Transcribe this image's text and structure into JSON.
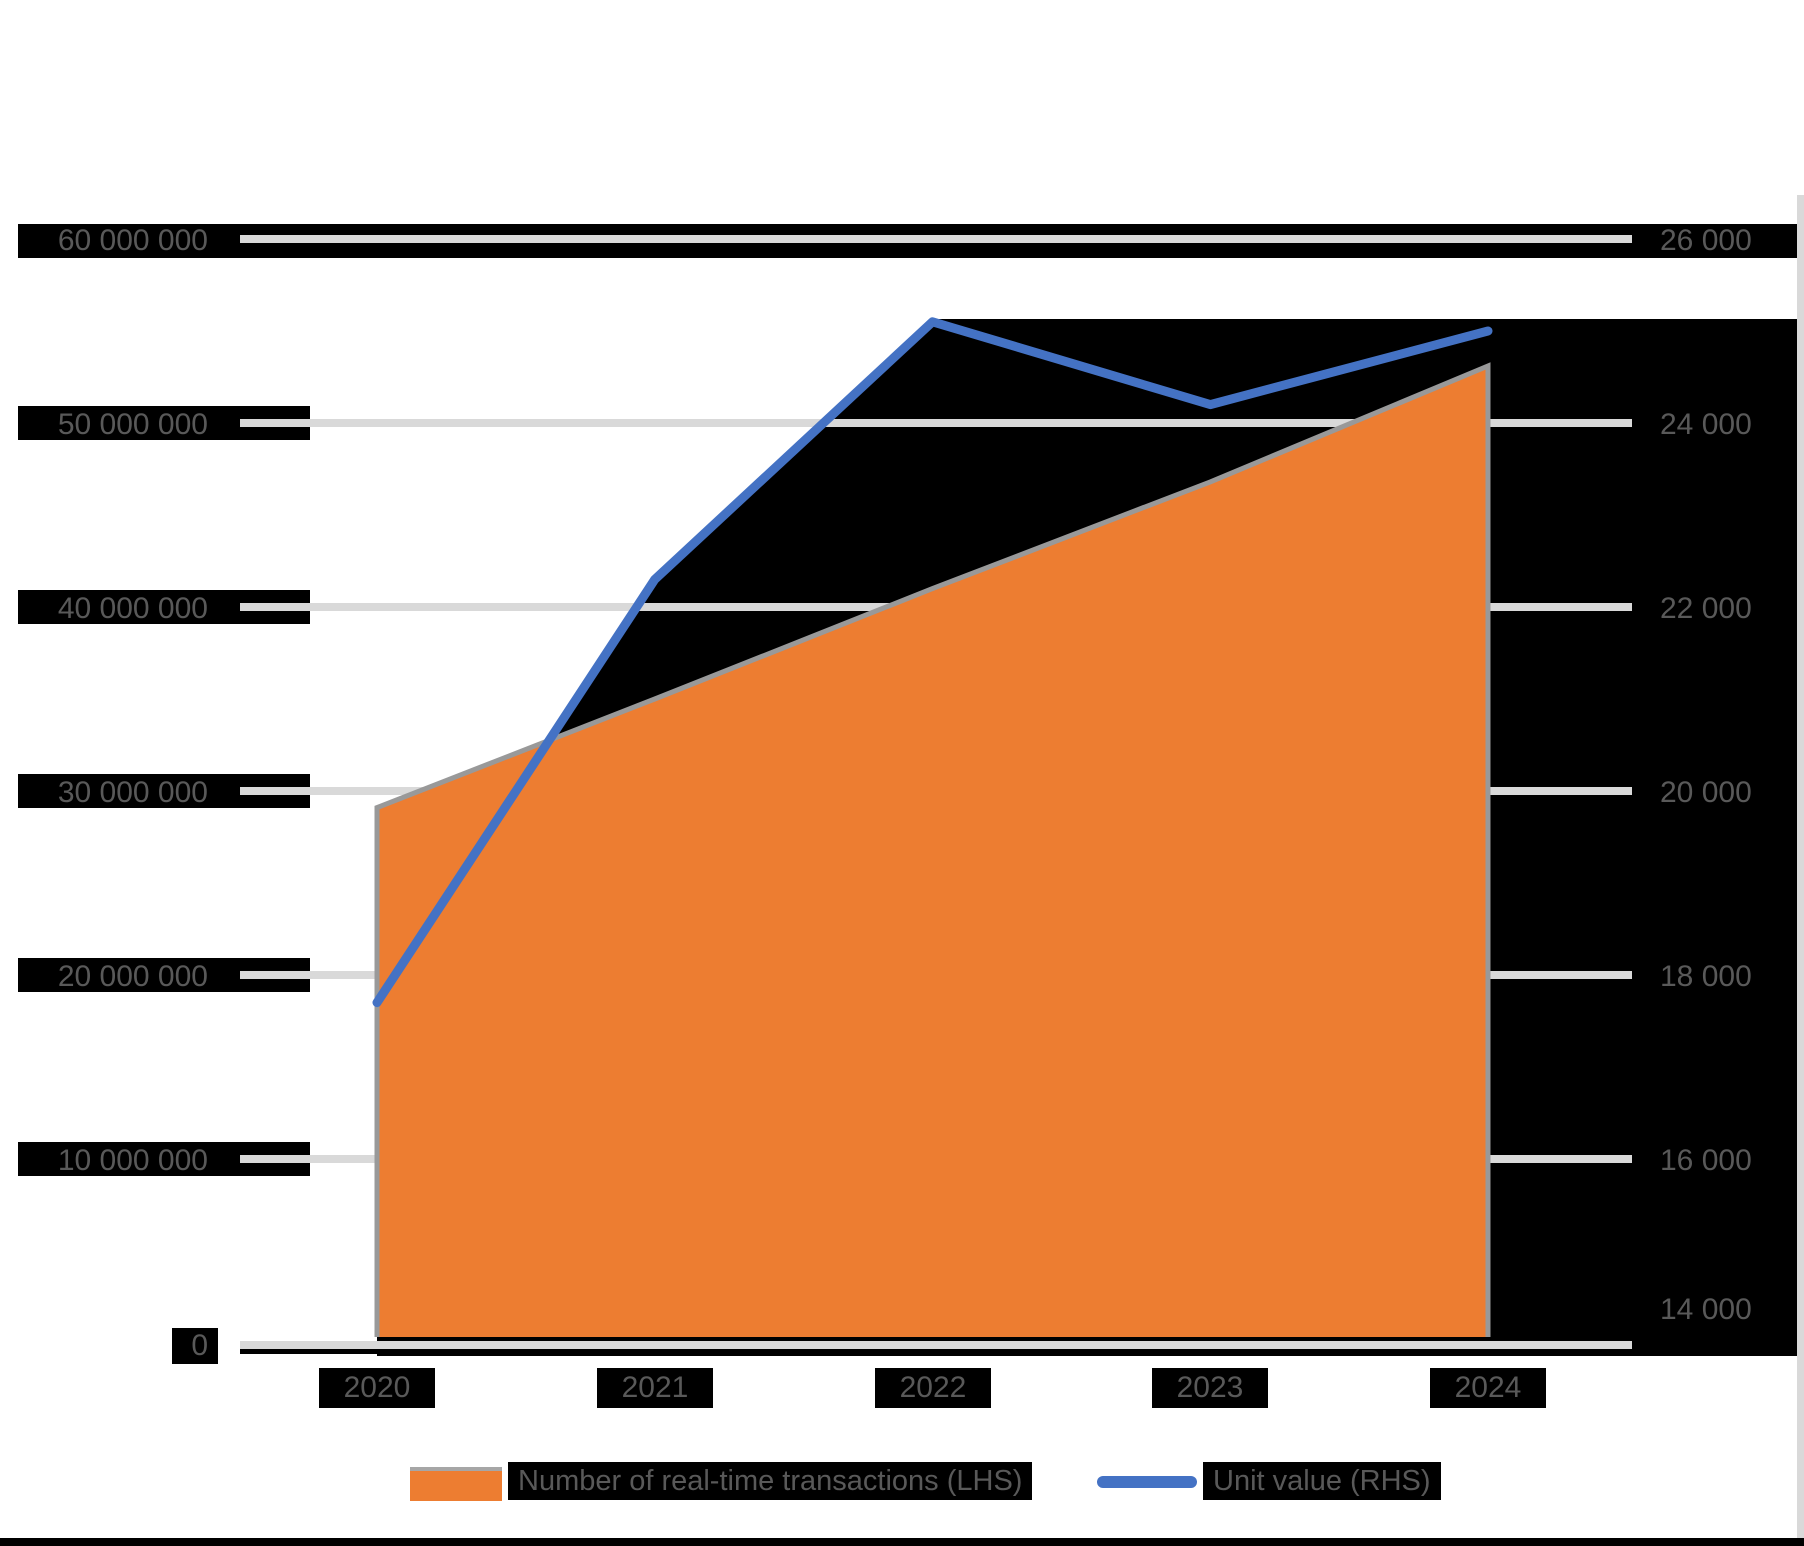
{
  "chart_data": {
    "type": "area",
    "subtype": "combo-area-line-dual-axis",
    "title": "",
    "categories": [
      "2020",
      "2021",
      "2022",
      "2023",
      "2024"
    ],
    "series": [
      {
        "name": "Number of real-time transactions (LHS)",
        "type": "area",
        "axis": "left",
        "color": "#ed7d31",
        "border_color": "#999999",
        "values": [
          29100000,
          35000000,
          41000000,
          46800000,
          53100000
        ]
      },
      {
        "name": "Unit value (RHS)",
        "type": "line",
        "axis": "right",
        "color": "#4472c4",
        "values": [
          17700,
          22300,
          25100,
          24200,
          25000
        ]
      }
    ],
    "axes": {
      "left": {
        "min": 0,
        "max": 60000000,
        "step": 10000000,
        "labels": [
          "60 000 000",
          "50 000 000",
          "40 000 000",
          "30 000 000",
          "20 000 000",
          "10 000 000",
          "0"
        ]
      },
      "right": {
        "min": 14000,
        "max": 26000,
        "step": 2000,
        "labels": [
          "26 000",
          "24 000",
          "22 000",
          "20 000",
          "18 000",
          "16 000",
          "14 000"
        ]
      },
      "x": {
        "labels": [
          "2020",
          "2021",
          "2022",
          "2023",
          "2024"
        ]
      }
    },
    "grid": true,
    "gridline_color": "#d9d9d9",
    "band_color": "#000000",
    "label_color": "#595959",
    "legend_position": "bottom"
  },
  "legend": {
    "area_label": "Number of real-time transactions (LHS)",
    "line_label": "Unit value (RHS)"
  }
}
